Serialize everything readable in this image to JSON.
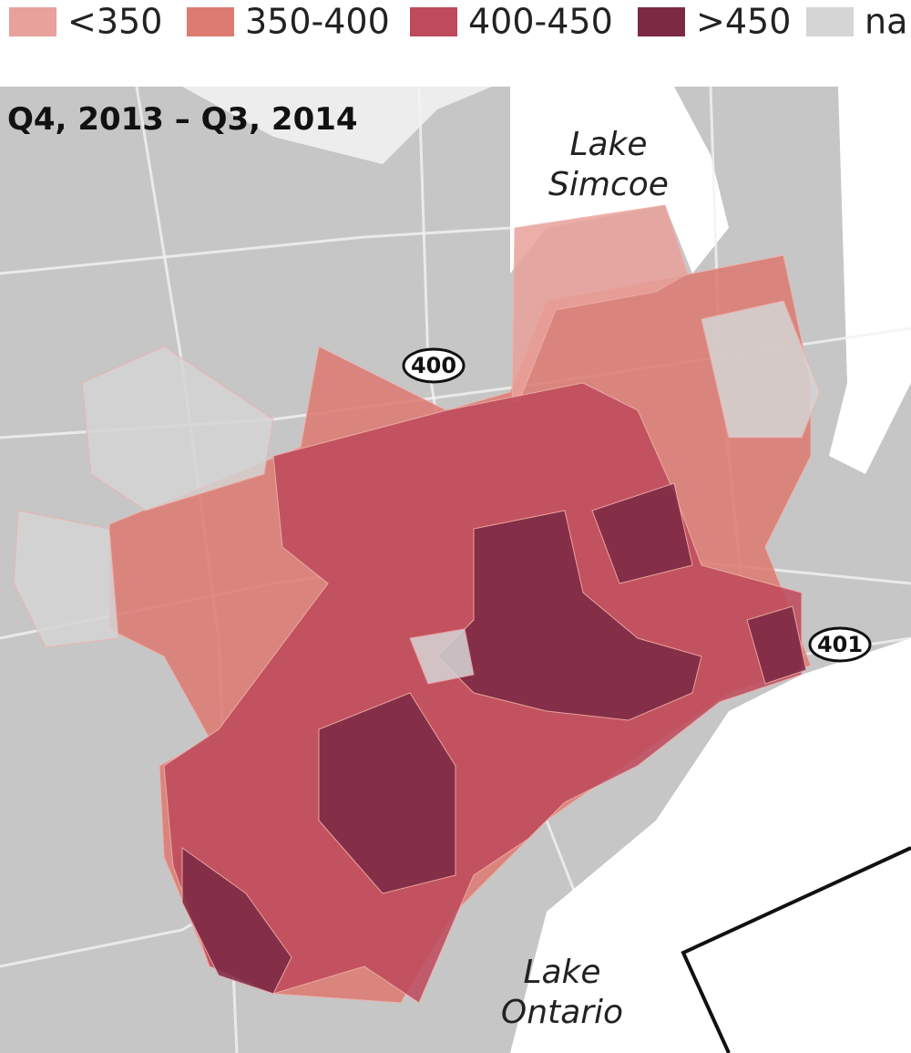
{
  "legend": [
    {
      "label": "<350",
      "color": "#e8a19b"
    },
    {
      "label": "350-400",
      "color": "#dd7b72"
    },
    {
      "label": "400-450",
      "color": "#bf4a5b"
    },
    {
      "label": ">450",
      "color": "#7c2944"
    },
    {
      "label": "na",
      "color": "#d5d5d5"
    }
  ],
  "title": "Q4, 2013 – Q3, 2014",
  "lake_labels": [
    {
      "lines": [
        "Lake",
        "Simcoe"
      ]
    },
    {
      "lines": [
        "Lake",
        "Ontario"
      ]
    }
  ],
  "highways": [
    "400",
    "401"
  ]
}
